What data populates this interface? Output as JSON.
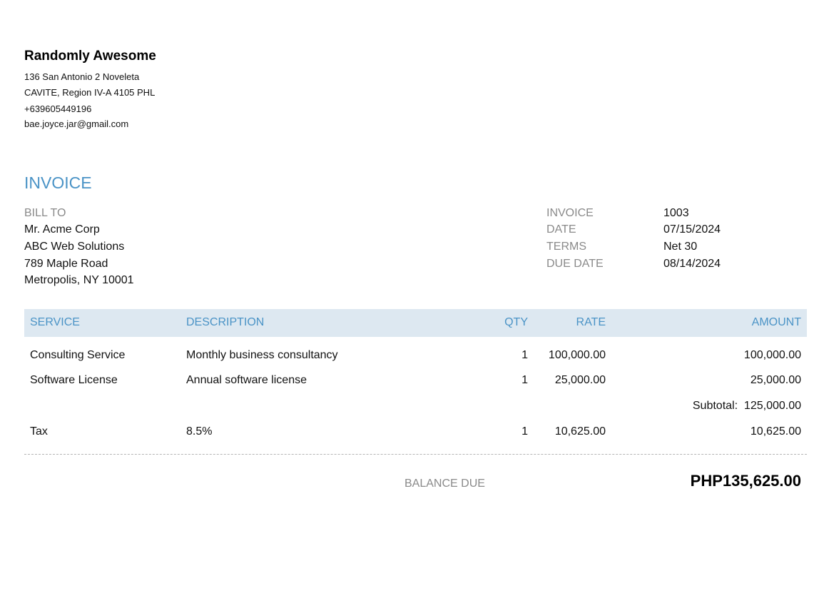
{
  "company": {
    "name": "Randomly Awesome",
    "address_lines": [
      "136 San Antonio 2 Noveleta",
      "CAVITE, Region IV-A  4105 PHL",
      "+639605449196",
      "bae.joyce.jar@gmail.com"
    ]
  },
  "title": "INVOICE",
  "bill_to": {
    "label": "BILL TO",
    "lines": [
      "Mr. Acme Corp",
      "ABC Web Solutions",
      "789 Maple Road",
      "Metropolis, NY 10001"
    ]
  },
  "meta": [
    {
      "label": "INVOICE",
      "value": "1003"
    },
    {
      "label": "DATE",
      "value": "07/15/2024"
    },
    {
      "label": "TERMS",
      "value": "Net 30"
    },
    {
      "label": "DUE DATE",
      "value": "08/14/2024"
    }
  ],
  "table": {
    "headers": {
      "service": "SERVICE",
      "description": "DESCRIPTION",
      "qty": "QTY",
      "rate": "RATE",
      "amount": "AMOUNT"
    },
    "rows": [
      {
        "service": "Consulting Service",
        "description": "Monthly business consultancy",
        "qty": "1",
        "rate": "100,000.00",
        "amount": "100,000.00"
      },
      {
        "service": "Software License",
        "description": "Annual software license",
        "qty": "1",
        "rate": "25,000.00",
        "amount": "25,000.00"
      }
    ],
    "subtotal": {
      "label": "Subtotal:",
      "value": "125,000.00"
    },
    "tax": {
      "service": "Tax",
      "description": "8.5%",
      "qty": "1",
      "rate": "10,625.00",
      "amount": "10,625.00"
    }
  },
  "balance": {
    "label": "BALANCE DUE",
    "amount": "PHP135,625.00"
  },
  "colors": {
    "accent": "#4a93c6",
    "header_bg": "#dde8f1",
    "label_gray": "#8a8a8a"
  }
}
